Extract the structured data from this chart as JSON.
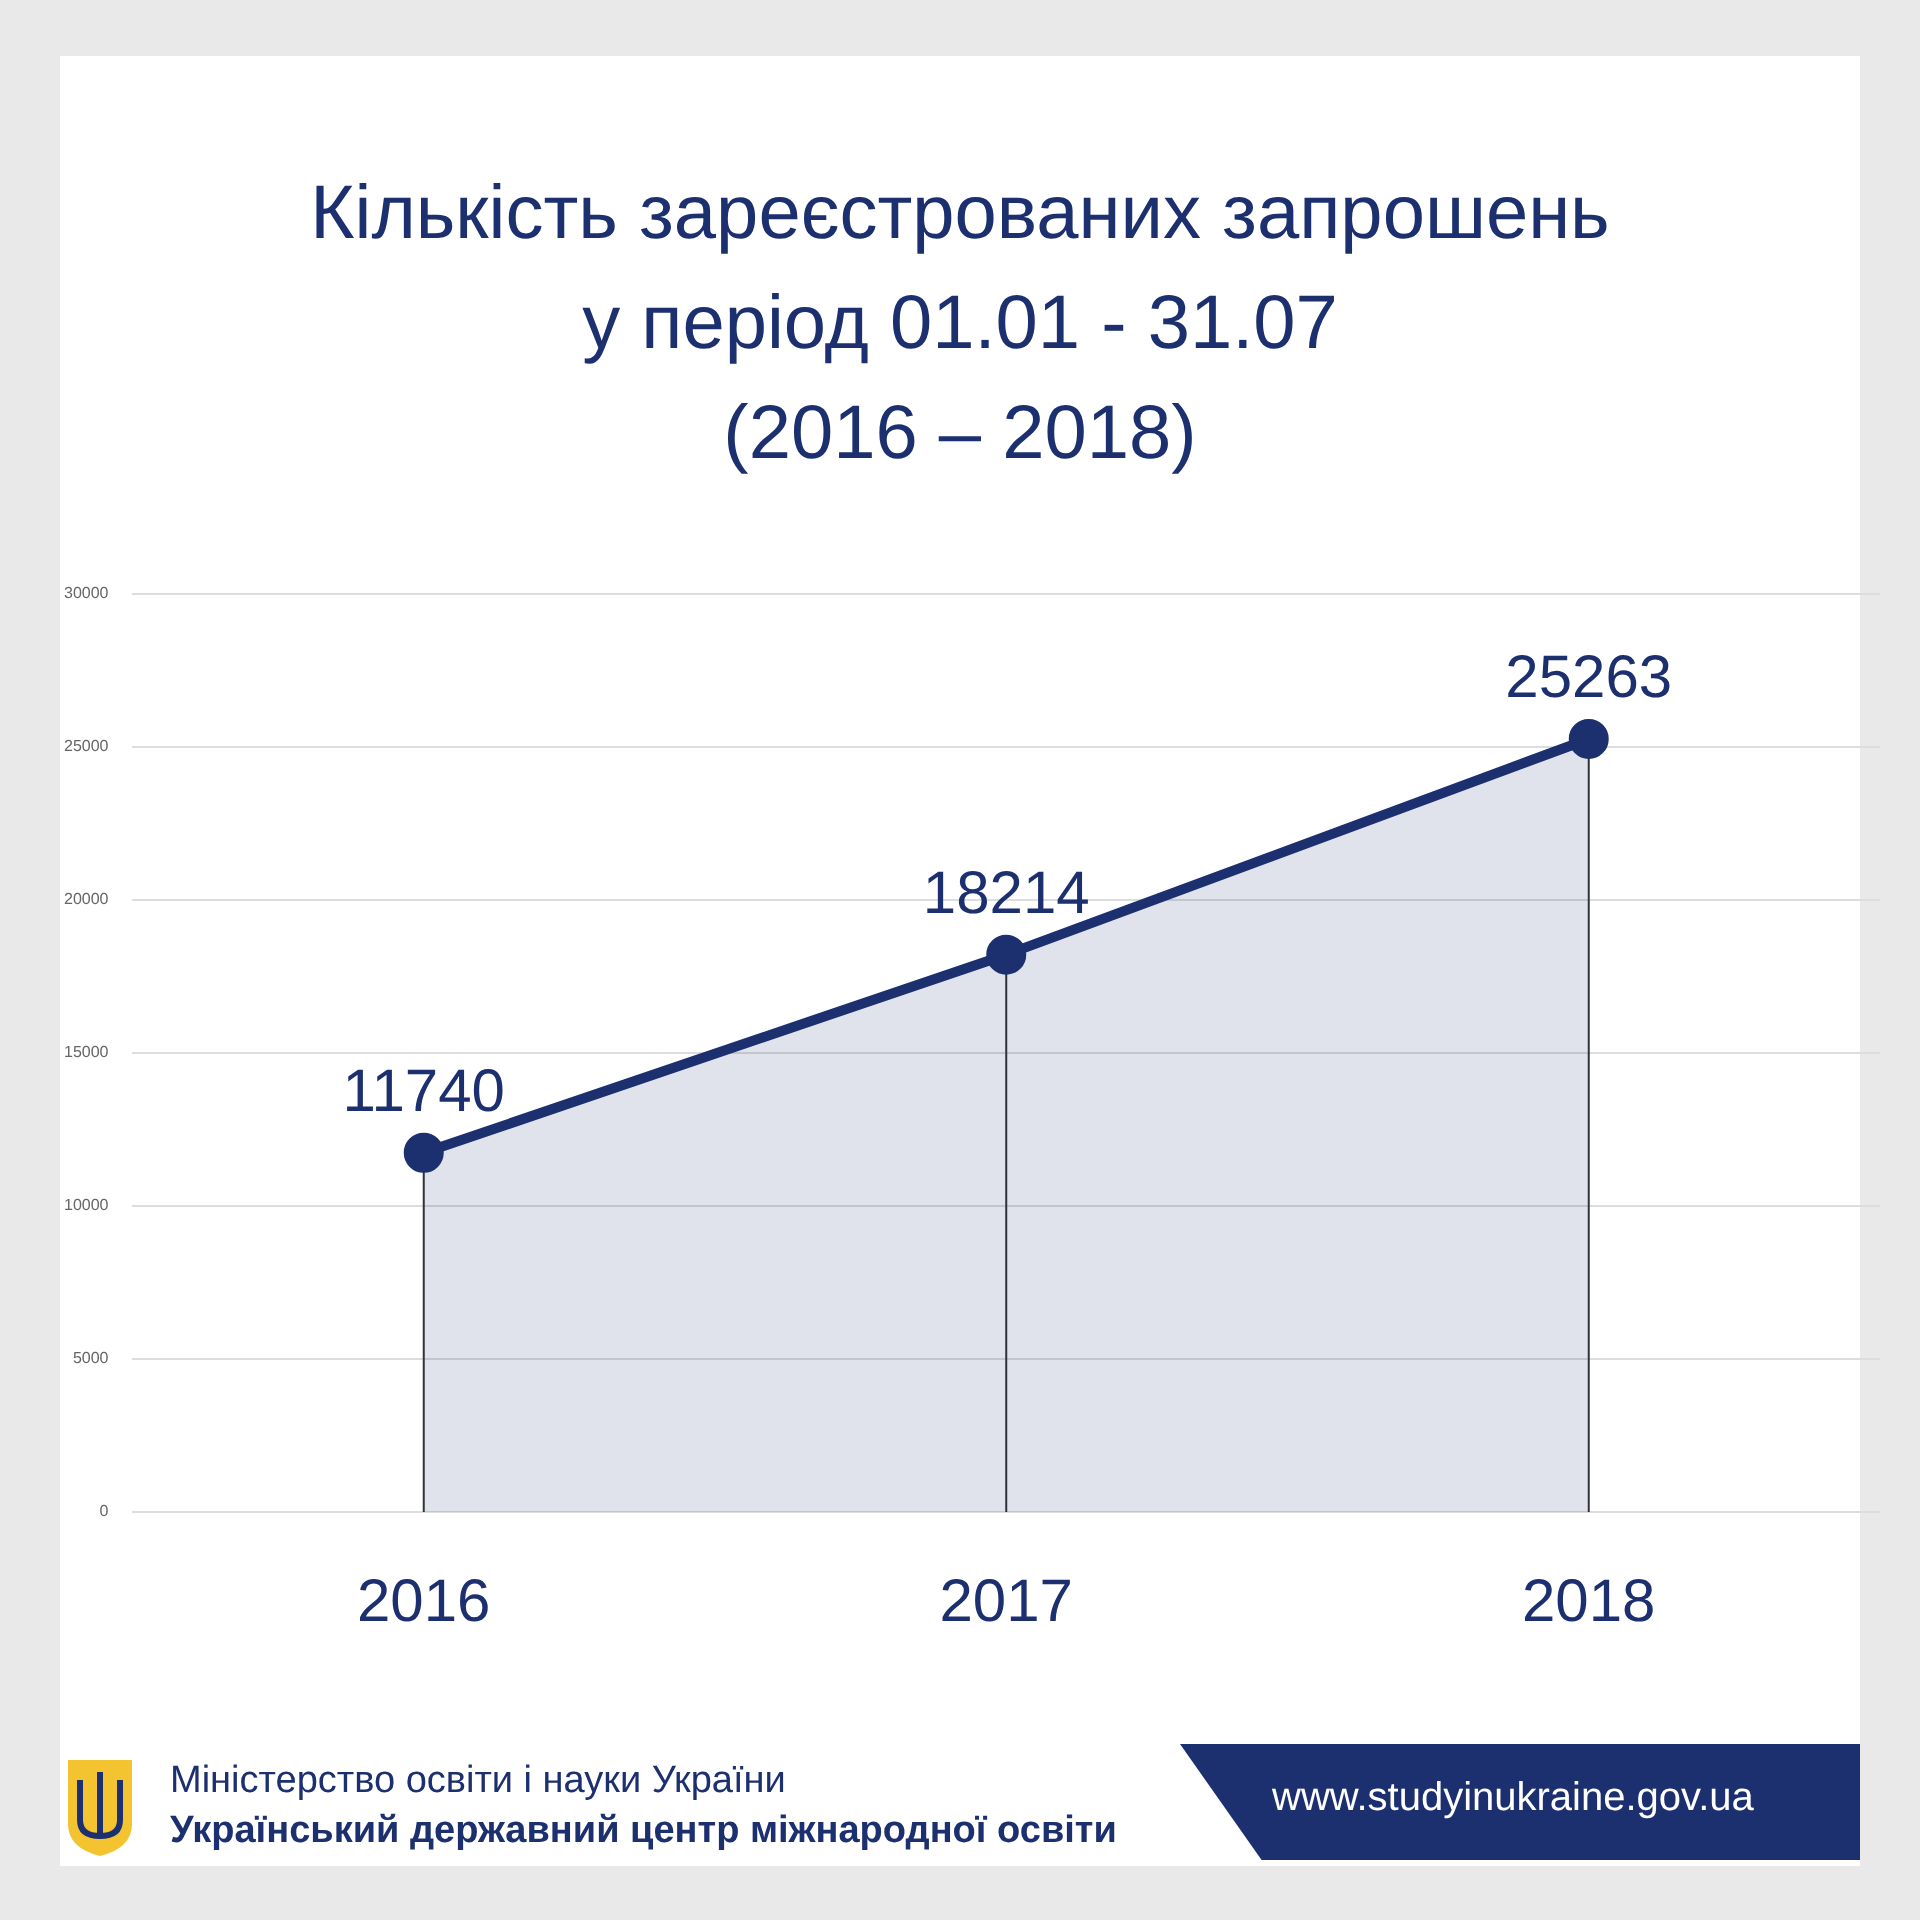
{
  "chart_data": {
    "type": "area",
    "title": "Кількість зареєстрованих запрошень\nу період 01.01 - 31.07\n(2016 – 2018)",
    "categories": [
      "2016",
      "2017",
      "2018"
    ],
    "series": [
      {
        "color": "#1c2f6e",
        "values": [
          11740,
          18214,
          25263
        ]
      }
    ],
    "ylim": [
      0,
      30000
    ],
    "yticks": [
      0,
      5000,
      10000,
      15000,
      20000,
      25000,
      30000
    ],
    "grid": "y",
    "marker": "circle",
    "data_labels": true,
    "legend": false,
    "ref_lines": [
      {
        "axis": "x",
        "value": "2016",
        "color": "#333333"
      },
      {
        "axis": "x",
        "value": "2017",
        "color": "#333333"
      },
      {
        "axis": "x",
        "value": "2018",
        "color": "#333333"
      }
    ],
    "annotations": [
      "Міністерство освіти і науки України",
      "Український державний центр міжнародної освіти",
      "www.studyinukraine.gov.ua"
    ]
  }
}
